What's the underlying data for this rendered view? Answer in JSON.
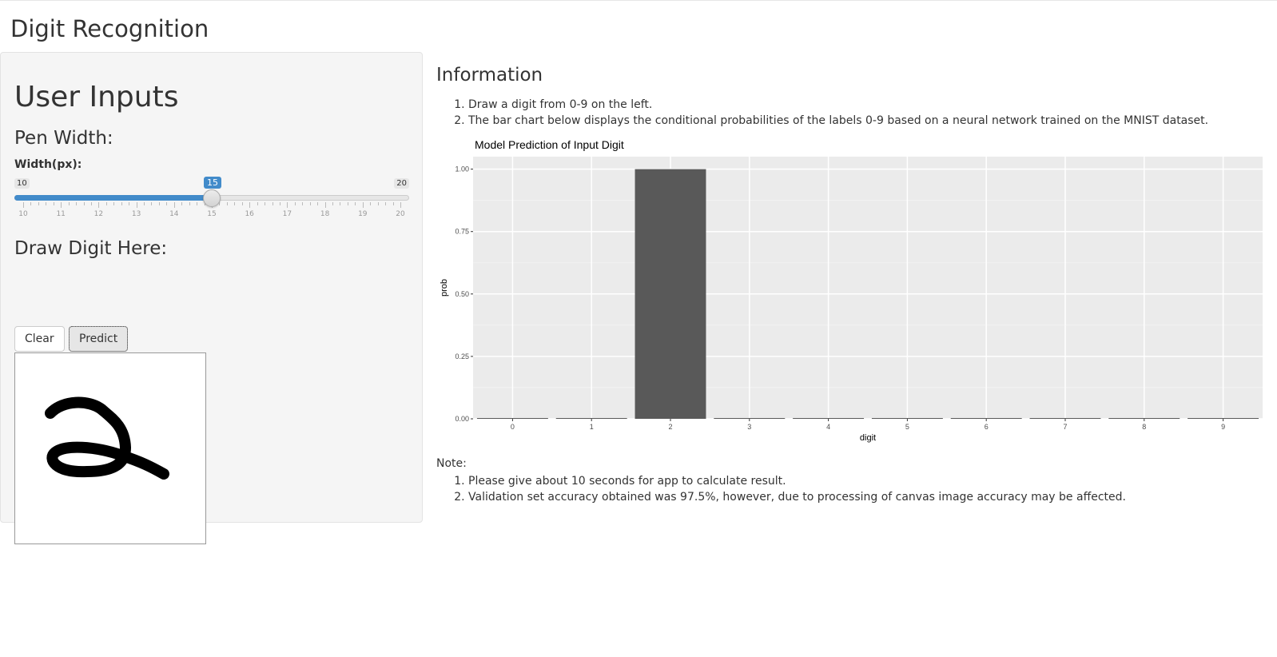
{
  "app": {
    "title": "Digit Recognition"
  },
  "sidebar": {
    "title": "User Inputs",
    "pen_width_heading": "Pen Width:",
    "slider": {
      "label": "Width(px):",
      "min": 10,
      "max": 20,
      "value": 15,
      "min_label": "10",
      "max_label": "20",
      "value_label": "15",
      "ticks": [
        "10",
        "11",
        "12",
        "13",
        "14",
        "15",
        "16",
        "17",
        "18",
        "19",
        "20"
      ],
      "fill_color": "#428bca"
    },
    "draw_heading": "Draw Digit Here:",
    "buttons": {
      "clear": "Clear",
      "predict": "Predict"
    }
  },
  "main": {
    "info_title": "Information",
    "info_items": [
      "Draw a digit from 0-9 on the left.",
      "The bar chart below displays the conditional probabilities of the labels 0-9 based on a neural network trained on the MNIST dataset."
    ],
    "note_label": "Note:",
    "note_items": [
      "Please give about 10 seconds for app to calculate result.",
      "Validation set accuracy obtained was 97.5%, however, due to processing of canvas image accuracy may be affected."
    ]
  },
  "chart_data": {
    "type": "bar",
    "title": "Model Prediction of Input Digit",
    "xlabel": "digit",
    "ylabel": "prob",
    "categories": [
      "0",
      "1",
      "2",
      "3",
      "4",
      "5",
      "6",
      "7",
      "8",
      "9"
    ],
    "values": [
      0,
      0,
      1.0,
      0,
      0,
      0,
      0,
      0,
      0,
      0
    ],
    "ylim": [
      0,
      1.05
    ],
    "yticks": [
      "0.00",
      "0.25",
      "0.50",
      "0.75",
      "1.00"
    ],
    "bar_color": "#595959",
    "panel_color": "#ebebeb",
    "grid": true
  }
}
